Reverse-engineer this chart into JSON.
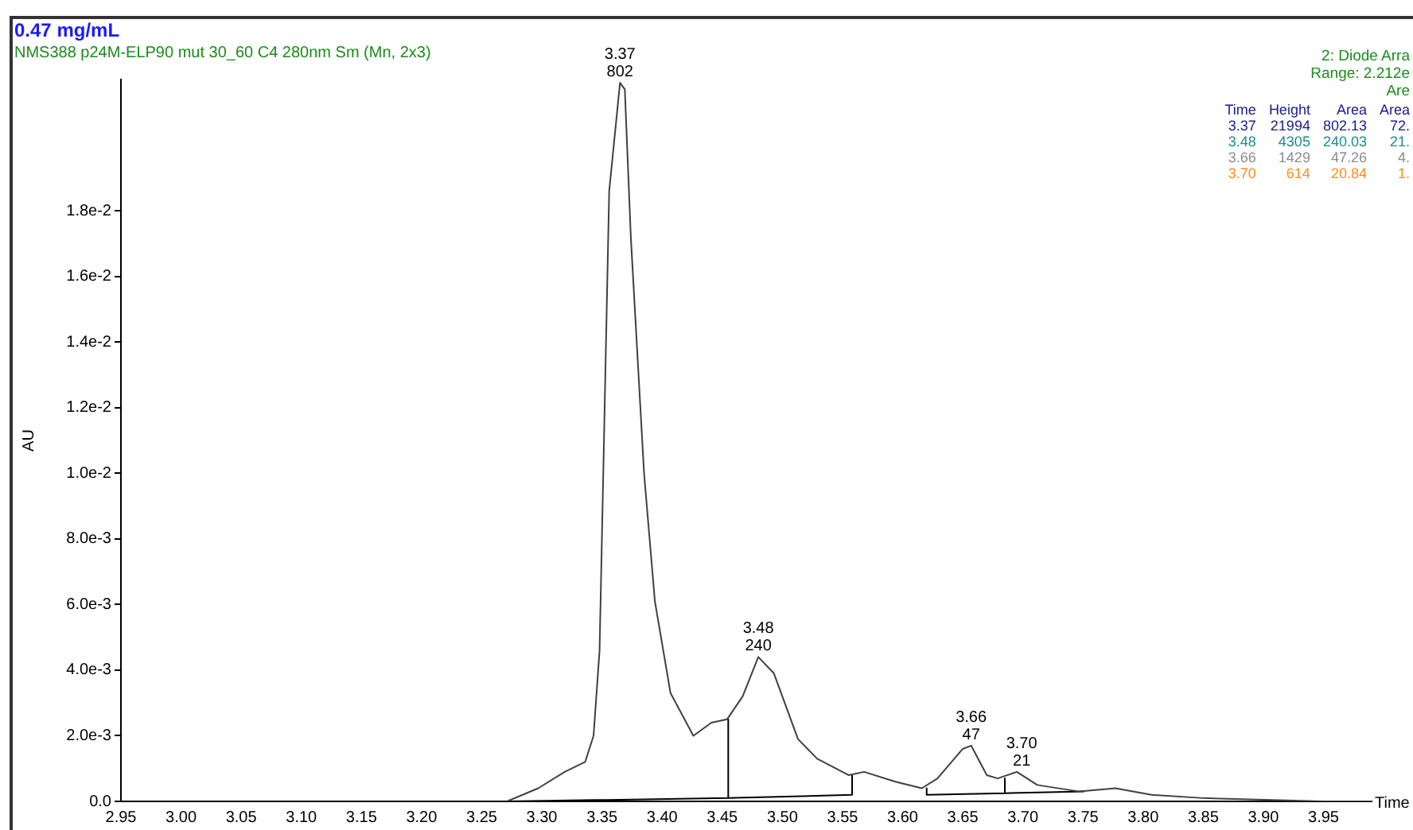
{
  "chart_data": {
    "type": "line",
    "title": "0.47 mg/mL",
    "subtitle": "NMS388 p24M-ELP90 mut 30_60 C4 280nm Sm (Mn, 2x3)",
    "xlabel": "Time",
    "ylabel": "AU",
    "xlim": [
      2.95,
      3.99
    ],
    "ylim": [
      0,
      0.022
    ],
    "xticks": [
      {
        "value": 2.95,
        "label": "2.95"
      },
      {
        "value": 3.0,
        "label": "3.00"
      },
      {
        "value": 3.05,
        "label": "3.05"
      },
      {
        "value": 3.1,
        "label": "3.10"
      },
      {
        "value": 3.15,
        "label": "3.15"
      },
      {
        "value": 3.2,
        "label": "3.20"
      },
      {
        "value": 3.25,
        "label": "3.25"
      },
      {
        "value": 3.3,
        "label": "3.30"
      },
      {
        "value": 3.35,
        "label": "3.35"
      },
      {
        "value": 3.4,
        "label": "3.40"
      },
      {
        "value": 3.45,
        "label": "3.45"
      },
      {
        "value": 3.5,
        "label": "3.50"
      },
      {
        "value": 3.55,
        "label": "3.55"
      },
      {
        "value": 3.6,
        "label": "3.60"
      },
      {
        "value": 3.65,
        "label": "3.65"
      },
      {
        "value": 3.7,
        "label": "3.70"
      },
      {
        "value": 3.75,
        "label": "3.75"
      },
      {
        "value": 3.8,
        "label": "3.80"
      },
      {
        "value": 3.85,
        "label": "3.85"
      },
      {
        "value": 3.9,
        "label": "3.90"
      },
      {
        "value": 3.95,
        "label": "3.95"
      }
    ],
    "yticks": [
      {
        "value": 0,
        "label": "0.0"
      },
      {
        "value": 0.002,
        "label": "2.0e-3"
      },
      {
        "value": 0.004,
        "label": "4.0e-3"
      },
      {
        "value": 0.006,
        "label": "6.0e-3"
      },
      {
        "value": 0.008,
        "label": "8.0e-3"
      },
      {
        "value": 0.01,
        "label": "1.0e-2"
      },
      {
        "value": 0.012,
        "label": "1.2e-2"
      },
      {
        "value": 0.014,
        "label": "1.4e-2"
      },
      {
        "value": 0.016,
        "label": "1.6e-2"
      },
      {
        "value": 0.018,
        "label": "1.8e-2"
      }
    ],
    "grid": false,
    "legend": false,
    "marker": "none",
    "line_style": "solid",
    "series": [
      {
        "color": "#404040",
        "x": [
          3.271,
          3.297,
          3.319,
          3.336,
          3.343,
          3.348,
          3.356,
          3.365,
          3.369,
          3.374,
          3.385,
          3.394,
          3.407,
          3.426,
          3.441,
          3.454,
          3.467,
          3.48,
          3.493,
          3.513,
          3.529,
          3.555,
          3.568,
          3.594,
          3.616,
          3.629,
          3.65,
          3.657,
          3.67,
          3.679,
          3.695,
          3.712,
          3.747,
          3.777,
          3.807,
          3.85,
          3.95,
          3.99
        ],
        "values": [
          0,
          0.0004,
          0.0009,
          0.0012,
          0.002,
          0.0046,
          0.0186,
          0.0219,
          0.0217,
          0.0172,
          0.01,
          0.0061,
          0.0033,
          0.002,
          0.0024,
          0.0025,
          0.0032,
          0.0044,
          0.0039,
          0.0019,
          0.0013,
          0.0008,
          0.0009,
          0.0006,
          0.0004,
          0.0007,
          0.0016,
          0.0017,
          0.0008,
          0.0007,
          0.0009,
          0.0005,
          0.0003,
          0.0004,
          0.0002,
          0.0001,
          0,
          0
        ]
      },
      {
        "color": "#000000",
        "x": [
          3.271,
          3.455,
          3.455,
          3.455,
          3.558,
          3.558,
          3.59,
          3.62,
          3.62,
          3.685,
          3.685,
          3.685,
          3.751
        ],
        "values": [
          0,
          0.0001,
          0.0025,
          0.0001,
          0.0002,
          0.0008,
          null,
          0.0004,
          0.0002,
          0.00025,
          0.0007,
          0.00025,
          0.0003
        ]
      }
    ],
    "annotations": [
      {
        "text": "3.37\n802",
        "x": 3.365,
        "y": 0.0219
      },
      {
        "text": "3.48\n240",
        "x": 3.48,
        "y": 0.0044
      },
      {
        "text": "3.66\n47",
        "x": 3.657,
        "y": 0.0017
      },
      {
        "text": "3.70\n21",
        "x": 3.699,
        "y": 0.0009
      },
      "2: Diode Arra",
      "Range: 2.212e",
      "Are",
      "Time Height Area Area",
      "3.37 21994 802.13 72.",
      "3.48 4305 240.03 21.",
      "3.66 1429 47.26 4.",
      "3.70 614 20.84 1."
    ]
  }
}
